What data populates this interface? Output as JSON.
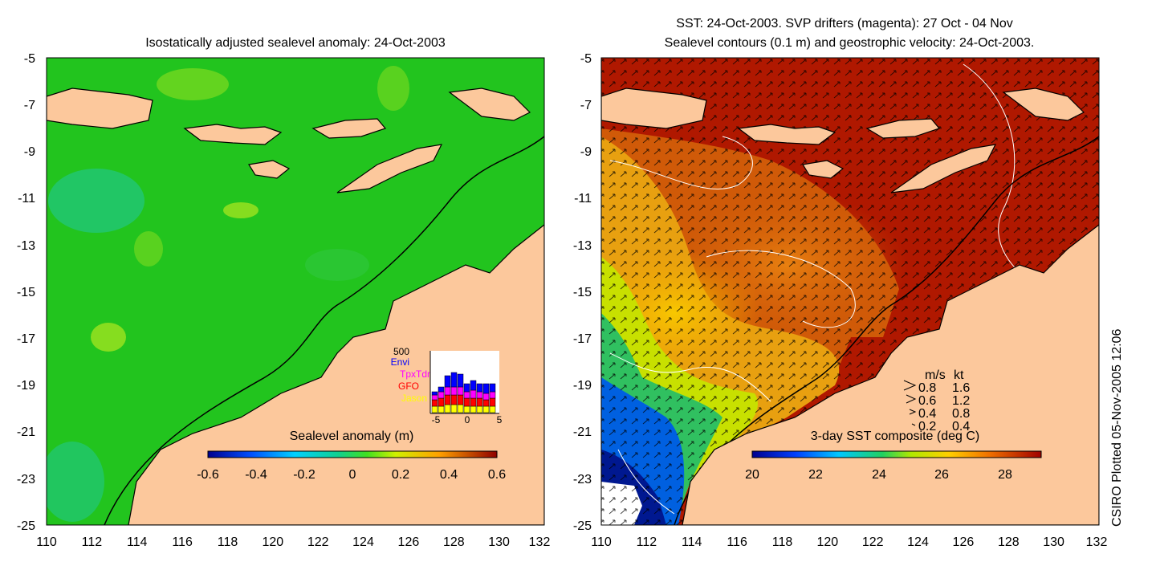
{
  "left_panel": {
    "title": "Isostatically adjusted sealevel anomaly: 24-Oct-2003",
    "x_ticks": [
      "110",
      "112",
      "114",
      "116",
      "118",
      "120",
      "122",
      "124",
      "126",
      "128",
      "130",
      "132"
    ],
    "y_ticks": [
      "-5",
      "-7",
      "-9",
      "-11",
      "-13",
      "-15",
      "-17",
      "-19",
      "-21",
      "-23",
      "-25"
    ],
    "colorbar": {
      "title": "Sealevel anomaly (m)",
      "ticks": [
        "-0.6",
        "-0.4",
        "-0.2",
        "0",
        "0.2",
        "0.4",
        "0.6"
      ]
    },
    "inset": {
      "ymax_label": "500",
      "legend": [
        {
          "name": "Envi",
          "color": "#0000ff"
        },
        {
          "name": "TpxTdm",
          "color": "#ff00ff"
        },
        {
          "name": "GFO",
          "color": "#ff0000"
        },
        {
          "name": "Jason",
          "color": "#ffff00"
        }
      ],
      "x_ticks": [
        "-5",
        "0",
        "5"
      ]
    }
  },
  "right_panel": {
    "title_line1": "SST: 24-Oct-2003. SVP drifters (magenta): 27 Oct - 04 Nov",
    "title_line2": "Sealevel contours (0.1 m) and geostrophic velocity: 24-Oct-2003.",
    "x_ticks": [
      "110",
      "112",
      "114",
      "116",
      "118",
      "120",
      "122",
      "124",
      "126",
      "128",
      "130",
      "132"
    ],
    "y_ticks": [
      "-5",
      "-7",
      "-9",
      "-11",
      "-13",
      "-15",
      "-17",
      "-19",
      "-21",
      "-23",
      "-25"
    ],
    "colorbar": {
      "title": "3-day SST composite (deg C)",
      "ticks": [
        "20",
        "22",
        "24",
        "26",
        "28"
      ]
    },
    "velocity_legend": {
      "header_ms": "m/s",
      "header_kt": "kt",
      "rows": [
        {
          "ms": "0.8",
          "kt": "1.6"
        },
        {
          "ms": "0.6",
          "kt": "1.2"
        },
        {
          "ms": "0.4",
          "kt": "0.8"
        },
        {
          "ms": "0.2",
          "kt": "0.4"
        }
      ]
    }
  },
  "side_label": "CSIRO Plotted 05-Nov-2005 12:06",
  "colors": {
    "land": "#fcc89c",
    "ocean_left": "#22c41e",
    "ocean_right_warm": "#b01800"
  }
}
